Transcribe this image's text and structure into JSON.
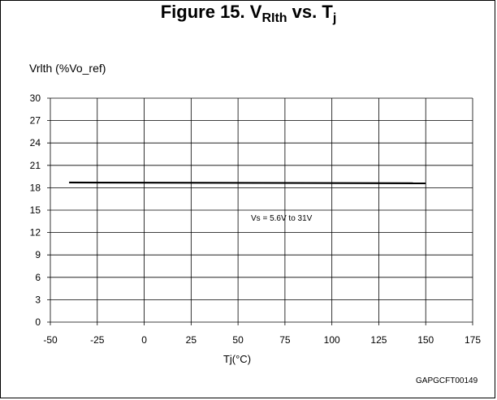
{
  "chart_data": {
    "type": "line",
    "title_main": "Figure 15. V",
    "title_sub1": "RIth",
    "title_mid": " vs. T",
    "title_sub2": "j",
    "ylabel": "Vrlth (%Vo_ref)",
    "xlabel": "Tj(°C)",
    "xlim": [
      -50,
      175
    ],
    "ylim": [
      0,
      30
    ],
    "xticks": [
      -50,
      -25,
      0,
      25,
      50,
      75,
      100,
      125,
      150,
      175
    ],
    "yticks": [
      0,
      3,
      6,
      9,
      12,
      15,
      18,
      21,
      24,
      27,
      30
    ],
    "grid": true,
    "series": [
      {
        "x": [
          -40,
          150
        ],
        "values": [
          18.7,
          18.6
        ]
      }
    ],
    "annotation": "Vs = 5.6V to 31V",
    "code": "GAPGCFT00149"
  },
  "colors": {
    "line": "#000000",
    "grid": "#000000"
  }
}
